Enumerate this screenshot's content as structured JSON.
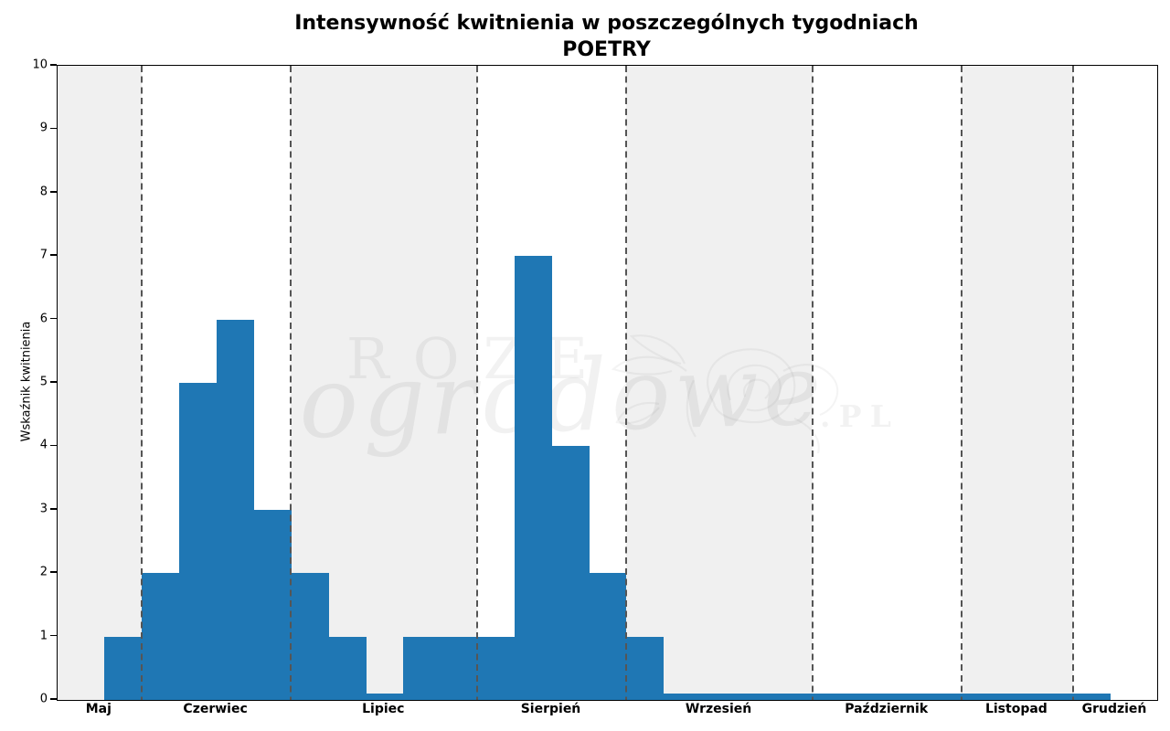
{
  "chart_data": {
    "type": "bar",
    "title": "Intensywność kwitnienia w poszczególnych tygodniach",
    "subtitle": "POETRY",
    "ylabel": "Wskaźnik kwitnienia",
    "xlabel": "",
    "ylim": [
      0,
      10
    ],
    "yticks": [
      0,
      1,
      2,
      3,
      4,
      5,
      6,
      7,
      8,
      9,
      10
    ],
    "grid": false,
    "legend": false,
    "x_unit": "week",
    "months": [
      {
        "label": "Maj",
        "shaded": true,
        "weeks": [
          {
            "width": 1.24,
            "value": 0
          },
          {
            "width": 1,
            "value": 1
          }
        ]
      },
      {
        "label": "Czerwiec",
        "shaded": false,
        "weeks": [
          {
            "width": 1,
            "value": 2
          },
          {
            "width": 1,
            "value": 5
          },
          {
            "width": 1,
            "value": 6
          },
          {
            "width": 1,
            "value": 3
          }
        ]
      },
      {
        "label": "Lipiec",
        "shaded": true,
        "weeks": [
          {
            "width": 1,
            "value": 2
          },
          {
            "width": 1,
            "value": 1
          },
          {
            "width": 1,
            "value": 0.1
          },
          {
            "width": 1,
            "value": 1
          },
          {
            "width": 0.98,
            "value": 1
          }
        ]
      },
      {
        "label": "Sierpień",
        "shaded": false,
        "weeks": [
          {
            "width": 1,
            "value": 1
          },
          {
            "width": 0.98,
            "value": 7
          },
          {
            "width": 1,
            "value": 4
          },
          {
            "width": 0.99,
            "value": 2
          }
        ]
      },
      {
        "label": "Wrzesień",
        "shaded": true,
        "weeks": [
          {
            "width": 1,
            "value": 1
          },
          {
            "width": 1,
            "value": 0.1
          },
          {
            "width": 1,
            "value": 0.1
          },
          {
            "width": 1,
            "value": 0.1
          },
          {
            "width": 1,
            "value": 0.1
          }
        ]
      },
      {
        "label": "Październik",
        "shaded": false,
        "weeks": [
          {
            "width": 1,
            "value": 0.1
          },
          {
            "width": 1,
            "value": 0.1
          },
          {
            "width": 1,
            "value": 0.1
          },
          {
            "width": 0.97,
            "value": 0.1
          }
        ]
      },
      {
        "label": "Listopad",
        "shaded": true,
        "weeks": [
          {
            "width": 1,
            "value": 0.1
          },
          {
            "width": 1,
            "value": 0.1
          },
          {
            "width": 0.98,
            "value": 0.1
          }
        ]
      },
      {
        "label": "Grudzień",
        "shaded": false,
        "weeks": [
          {
            "width": 1,
            "value": 0.1
          },
          {
            "width": 1.25,
            "value": 0
          }
        ]
      }
    ],
    "colors": {
      "bar": "#1f77b4",
      "month_band": "#f0f0f0",
      "month_divider": "#555555",
      "axis": "#000000"
    }
  },
  "watermark": {
    "word1": "ROZE",
    "word2": "ogrodowe",
    "word3": ".PL"
  }
}
